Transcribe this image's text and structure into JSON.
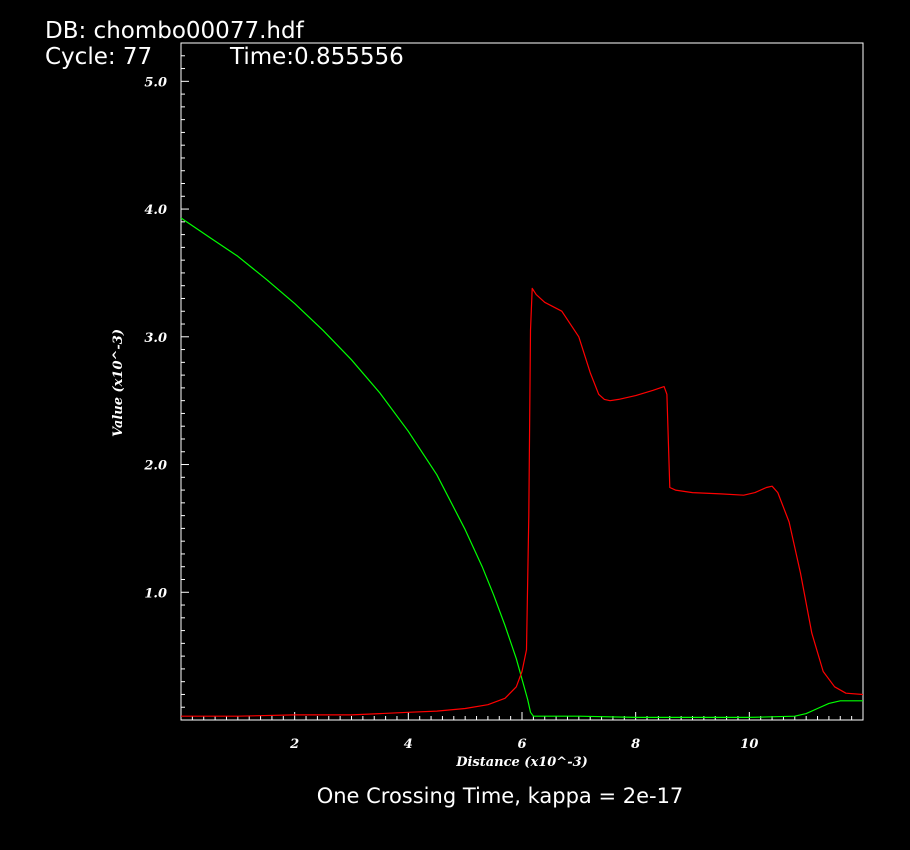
{
  "header": {
    "db_label": "DB: chombo00077.hdf",
    "cycle_label": "Cycle: 77",
    "time_label": "Time:0.855556"
  },
  "caption": "One Crossing Time, kappa = 2e-17",
  "colors": {
    "background": "#000000",
    "axes": "#ffffff",
    "series_green": "#00ff00",
    "series_red": "#ff0000"
  },
  "chart_data": {
    "type": "line",
    "title": "",
    "xlabel": "Distance (x10^-3)",
    "ylabel": "Value (x10^-3)",
    "xlim": [
      0,
      12
    ],
    "ylim": [
      0,
      5.3
    ],
    "grid": false,
    "x_ticks": [
      2,
      4,
      6,
      8,
      10
    ],
    "x_tick_labels": [
      "2",
      "4",
      "6",
      "8",
      "10"
    ],
    "y_ticks": [
      1.0,
      2.0,
      3.0,
      4.0,
      5.0
    ],
    "y_tick_labels": [
      "1.0",
      "2.0",
      "3.0",
      "4.0",
      "5.0"
    ],
    "series": [
      {
        "color": "#00ff00",
        "x": [
          0,
          0.5,
          1.0,
          1.5,
          2.0,
          2.5,
          3.0,
          3.5,
          4.0,
          4.5,
          5.0,
          5.3,
          5.5,
          5.7,
          5.9,
          6.0,
          6.1,
          6.15,
          6.2,
          6.3,
          7.0,
          8.0,
          9.0,
          10.0,
          10.8,
          11.0,
          11.2,
          11.4,
          11.6,
          12.0
        ],
        "y": [
          3.93,
          3.78,
          3.63,
          3.45,
          3.26,
          3.05,
          2.82,
          2.56,
          2.26,
          1.92,
          1.49,
          1.2,
          0.98,
          0.74,
          0.48,
          0.32,
          0.16,
          0.06,
          0.03,
          0.03,
          0.03,
          0.02,
          0.02,
          0.02,
          0.03,
          0.05,
          0.09,
          0.13,
          0.15,
          0.15
        ]
      },
      {
        "color": "#ff0000",
        "x": [
          0,
          1.0,
          2.0,
          3.0,
          3.5,
          4.0,
          4.5,
          5.0,
          5.4,
          5.7,
          5.9,
          6.0,
          6.08,
          6.12,
          6.15,
          6.18,
          6.25,
          6.4,
          6.7,
          7.0,
          7.2,
          7.35,
          7.45,
          7.55,
          7.7,
          8.0,
          8.3,
          8.5,
          8.55,
          8.6,
          8.7,
          9.0,
          9.5,
          9.9,
          10.1,
          10.3,
          10.4,
          10.5,
          10.7,
          10.9,
          11.1,
          11.3,
          11.5,
          11.7,
          12.0
        ],
        "y": [
          0.03,
          0.03,
          0.04,
          0.04,
          0.05,
          0.06,
          0.07,
          0.09,
          0.12,
          0.17,
          0.26,
          0.38,
          0.55,
          1.6,
          3.05,
          3.38,
          3.33,
          3.27,
          3.2,
          3.0,
          2.72,
          2.55,
          2.51,
          2.5,
          2.51,
          2.54,
          2.58,
          2.61,
          2.55,
          1.82,
          1.8,
          1.78,
          1.77,
          1.76,
          1.78,
          1.82,
          1.83,
          1.78,
          1.55,
          1.15,
          0.68,
          0.38,
          0.26,
          0.21,
          0.2
        ]
      }
    ]
  }
}
